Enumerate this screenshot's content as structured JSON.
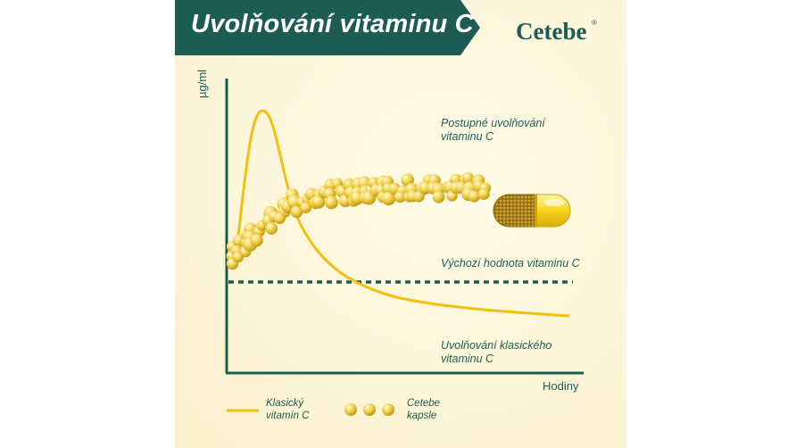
{
  "header": {
    "title": "Uvolňování vitaminu C",
    "brand": "Cetebe",
    "brand_mark": "®"
  },
  "colors": {
    "teal": "#1d5c52",
    "yellow": "#f2c10f",
    "background": "#fdf5d8"
  },
  "chart_data": {
    "type": "line",
    "title": "Uvolňování vitaminu C",
    "xlabel": "Hodiny",
    "ylabel": "µg/ml",
    "grid": false,
    "series": [
      {
        "name": "Klasický vitamín C",
        "style": "solid-line",
        "x": [
          0,
          0.5,
          1,
          1.5,
          2,
          2.5,
          3,
          3.5,
          4,
          5,
          6,
          7,
          8,
          9,
          10
        ],
        "y": [
          15,
          60,
          92,
          78,
          40,
          28,
          21,
          16,
          12,
          8,
          6,
          5,
          4.5,
          4,
          3.5
        ]
      },
      {
        "name": "Cetebe kapsle",
        "style": "capsule-beads",
        "x": [
          0,
          0.5,
          1,
          1.5,
          2,
          3,
          4,
          5,
          6,
          7,
          8,
          9
        ],
        "y": [
          15,
          22,
          30,
          36,
          42,
          48,
          50,
          50,
          51,
          52,
          52,
          52
        ]
      }
    ],
    "baseline": {
      "name": "Výchozí hodnota vitaminu C",
      "y": 19,
      "style": "dotted"
    },
    "annotations": [
      "Postupné uvolňování vitaminu C",
      "Výchozí hodnota vitaminu C",
      "Uvolňování klasického vitaminu C"
    ]
  },
  "annotations": {
    "gradual_line1": "Postupné uvolňování",
    "gradual_line2": "vitaminu C",
    "baseline": "Výchozí hodnota vitaminu C",
    "classic_line1": "Uvolňování klasického",
    "classic_line2": "vitaminu C"
  },
  "legend": {
    "classic_line1": "Klasický",
    "classic_line2": "vitamín C",
    "cetebe_line1": "Cetebe",
    "cetebe_line2": "kapsle"
  },
  "axes": {
    "y_label": "µg/ml",
    "x_label": "Hodiny"
  }
}
